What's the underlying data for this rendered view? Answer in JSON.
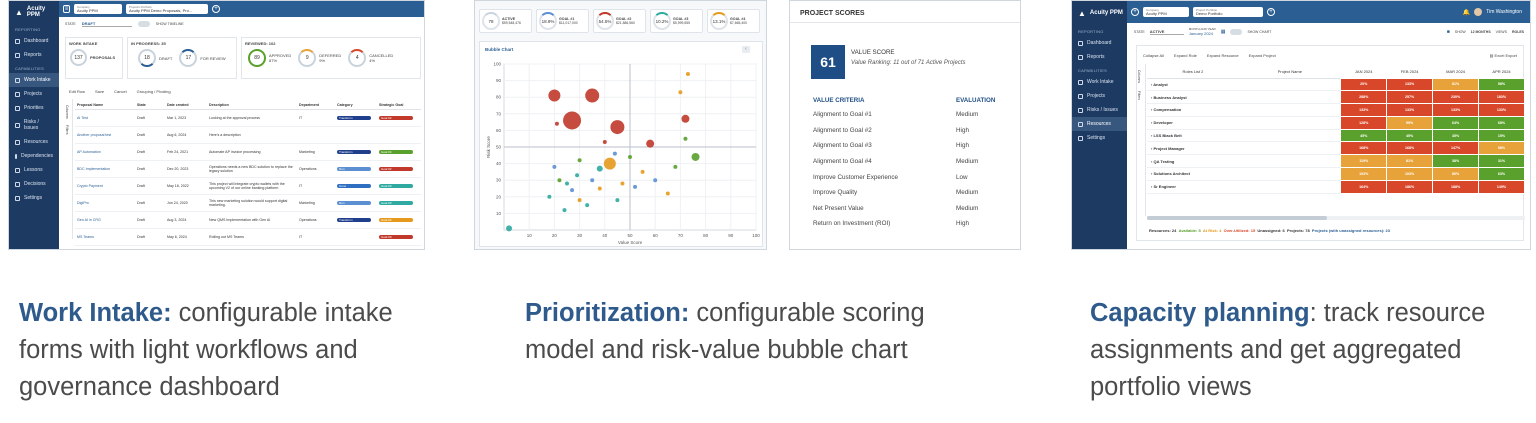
{
  "colors": {
    "sidebar": "#1d3a63",
    "topbar": "#2b5f94",
    "accent": "#2e5a8c",
    "text": "#4b4b4b"
  },
  "p1": {
    "app": "Acuity PPM",
    "company_label": "Company",
    "company": "Acuity PPM",
    "portfolio_label": "Projects Portfolio",
    "portfolio": "Acuity PPM Demo Proposals, Pro...",
    "nav_section1": "REPORTING",
    "nav_section2": "CAPABILITIES",
    "nav": [
      {
        "label": "Dashboard",
        "icon": "home-icon"
      },
      {
        "label": "Reports",
        "icon": "report-icon"
      },
      {
        "label": "Work Intake",
        "icon": "intake-icon",
        "active": true
      },
      {
        "label": "Projects",
        "icon": "folder-icon"
      },
      {
        "label": "Priorities",
        "icon": "priority-icon"
      },
      {
        "label": "Risks / Issues",
        "icon": "warning-icon"
      },
      {
        "label": "Resources",
        "icon": "people-icon"
      },
      {
        "label": "Dependencies",
        "icon": "link-icon"
      },
      {
        "label": "Lessons",
        "icon": "bulb-icon"
      },
      {
        "label": "Decisions",
        "icon": "gavel-icon"
      },
      {
        "label": "Settings",
        "icon": "gear-icon"
      }
    ],
    "state_label": "STATE",
    "state": "DRAFT",
    "timeline": "SHOW TIMELINE",
    "work_intake": {
      "title": "WORK INTAKE",
      "count": "137",
      "label": "PROPOSALS"
    },
    "in_progress": {
      "title": "IN PROGRESS: 35",
      "draft": "18",
      "draft_label": "DRAFT",
      "review": "17",
      "review_label": "FOR REVIEW"
    },
    "reviewed": {
      "title": "REVIEWED: 102",
      "approved": "89",
      "approved_label": "APPROVED",
      "approved_pct": "87%",
      "deferred": "9",
      "deferred_label": "DEFERRED",
      "deferred_pct": "9%",
      "cancelled": "4",
      "cancelled_label": "CANCELLED",
      "cancelled_pct": "4%"
    },
    "toolbar": [
      "Edit Row",
      "Save",
      "Cancel",
      "Grouping / Pivoting"
    ],
    "side_tabs": [
      "Columns",
      "Filters"
    ],
    "columns": [
      "Proposal Name",
      "State",
      "Date created",
      "Description",
      "Department",
      "Category",
      "Strategic Goal"
    ],
    "rows": [
      {
        "name": "AI Test",
        "state": "Draft",
        "date": "Mar 1, 2023",
        "desc": "Looking at the approval process",
        "dept": "IT",
        "cat": "Transform",
        "cat_color": "#1f3f8c",
        "goal": "Goal #2",
        "goal_color": "#c0392b"
      },
      {
        "name": "Another proposal test",
        "state": "Draft",
        "date": "Aug 6, 2024",
        "desc": "Here's a description",
        "dept": "",
        "cat": "",
        "cat_color": "",
        "goal": "",
        "goal_color": ""
      },
      {
        "name": "AP Automation",
        "state": "Draft",
        "date": "Feb 24, 2021",
        "desc": "Automate AP invoice processing",
        "dept": "Marketing",
        "cat": "Transform",
        "cat_color": "#1f3f8c",
        "goal": "Goal #4",
        "goal_color": "#5aa02c"
      },
      {
        "name": "BDC Implementation",
        "state": "Draft",
        "date": "Dec 20, 2023",
        "desc": "Operations needs a new BDC solution to replace the legacy solution",
        "dept": "Operations",
        "cat": "Run",
        "cat_color": "#5b8fd1",
        "goal": "Goal #2",
        "goal_color": "#c0392b"
      },
      {
        "name": "Crypto Payment",
        "state": "Draft",
        "date": "May 18, 2022",
        "desc": "This project will integrate crypto wallets with the upcoming V2 of our online banking platform",
        "dept": "IT",
        "cat": "Grow",
        "cat_color": "#2f6fc2",
        "goal": "Goal #3",
        "goal_color": "#2eaaa0"
      },
      {
        "name": "DigiPro",
        "state": "Draft",
        "date": "Jun 24, 2020",
        "desc": "This new marketing solution would support digital marketing.",
        "dept": "Marketing",
        "cat": "Run",
        "cat_color": "#5b8fd1",
        "goal": "Goal #3",
        "goal_color": "#2eaaa0"
      },
      {
        "name": "Gen AI in CRG",
        "state": "Draft",
        "date": "Aug 3, 2024",
        "desc": "New QMS Implementation with Gen AI",
        "dept": "Operations",
        "cat": "Transform",
        "cat_color": "#1f3f8c",
        "goal": "Goal #2",
        "goal_color": "#e69a1d"
      },
      {
        "name": "MS Teams",
        "state": "Draft",
        "date": "May 6, 2024",
        "desc": "Rolling out MS Teams",
        "dept": "IT",
        "cat": "",
        "cat_color": "",
        "goal": "Goal #C",
        "goal_color": "#c0392b"
      }
    ]
  },
  "p2": {
    "kpis": [
      {
        "value": "78",
        "label": "ACTIVE",
        "sub": "$59,548,476",
        "color": "#c9d3dd"
      },
      {
        "value": "18.9%",
        "label": "GOAL #1",
        "sub": "$11,017,000",
        "color": "#5b8fd1"
      },
      {
        "value": "54.5%",
        "label": "GOAL #2",
        "sub": "$21,886,560",
        "color": "#c0392b"
      },
      {
        "value": "10.2%",
        "label": "GOAL #3",
        "sub": "$5,999,655",
        "color": "#2eaaa0"
      },
      {
        "value": "13.1%",
        "label": "GOAL #4",
        "sub": "$7,665,400",
        "color": "#e69a1d"
      }
    ],
    "chart_title": "Bubble Chart"
  },
  "chart_data": {
    "type": "scatter",
    "title": "Bubble Chart",
    "xlabel": "Value Score",
    "ylabel": "Risk Score",
    "xlim": [
      0,
      100
    ],
    "ylim": [
      0,
      100
    ],
    "xticks": [
      10,
      20,
      30,
      40,
      50,
      60,
      70,
      80,
      90,
      100
    ],
    "yticks": [
      10,
      20,
      30,
      40,
      50,
      60,
      70,
      80,
      90,
      100
    ],
    "points": [
      {
        "x": 20,
        "y": 81,
        "r": 6,
        "color": "#c0392b"
      },
      {
        "x": 35,
        "y": 81,
        "r": 7,
        "color": "#c0392b"
      },
      {
        "x": 27,
        "y": 66,
        "r": 9,
        "color": "#c0392b"
      },
      {
        "x": 45,
        "y": 62,
        "r": 7,
        "color": "#c0392b"
      },
      {
        "x": 72,
        "y": 67,
        "r": 4,
        "color": "#c0392b"
      },
      {
        "x": 58,
        "y": 52,
        "r": 4,
        "color": "#c0392b"
      },
      {
        "x": 21,
        "y": 64,
        "r": 2,
        "color": "#c0392b"
      },
      {
        "x": 40,
        "y": 53,
        "r": 2,
        "color": "#c0392b"
      },
      {
        "x": 70,
        "y": 83,
        "r": 2,
        "color": "#e69a1d"
      },
      {
        "x": 73,
        "y": 94,
        "r": 2,
        "color": "#e69a1d"
      },
      {
        "x": 42,
        "y": 40,
        "r": 6,
        "color": "#e69a1d"
      },
      {
        "x": 38,
        "y": 25,
        "r": 2,
        "color": "#e69a1d"
      },
      {
        "x": 55,
        "y": 35,
        "r": 2,
        "color": "#e69a1d"
      },
      {
        "x": 47,
        "y": 28,
        "r": 2,
        "color": "#e69a1d"
      },
      {
        "x": 30,
        "y": 18,
        "r": 2,
        "color": "#e69a1d"
      },
      {
        "x": 65,
        "y": 22,
        "r": 2,
        "color": "#e69a1d"
      },
      {
        "x": 76,
        "y": 44,
        "r": 4,
        "color": "#5aa02c"
      },
      {
        "x": 72,
        "y": 55,
        "r": 2,
        "color": "#5aa02c"
      },
      {
        "x": 68,
        "y": 38,
        "r": 2,
        "color": "#5aa02c"
      },
      {
        "x": 30,
        "y": 42,
        "r": 2,
        "color": "#5aa02c"
      },
      {
        "x": 22,
        "y": 30,
        "r": 2,
        "color": "#5aa02c"
      },
      {
        "x": 50,
        "y": 44,
        "r": 2,
        "color": "#5aa02c"
      },
      {
        "x": 38,
        "y": 37,
        "r": 3,
        "color": "#2eaaa0"
      },
      {
        "x": 25,
        "y": 28,
        "r": 2,
        "color": "#2eaaa0"
      },
      {
        "x": 29,
        "y": 33,
        "r": 2,
        "color": "#2eaaa0"
      },
      {
        "x": 18,
        "y": 20,
        "r": 2,
        "color": "#2eaaa0"
      },
      {
        "x": 33,
        "y": 15,
        "r": 2,
        "color": "#2eaaa0"
      },
      {
        "x": 24,
        "y": 12,
        "r": 2,
        "color": "#2eaaa0"
      },
      {
        "x": 45,
        "y": 18,
        "r": 2,
        "color": "#2eaaa0"
      },
      {
        "x": 2,
        "y": 1,
        "r": 3,
        "color": "#2eaaa0"
      },
      {
        "x": 27,
        "y": 24,
        "r": 2,
        "color": "#5b8fd1"
      },
      {
        "x": 35,
        "y": 30,
        "r": 2,
        "color": "#5b8fd1"
      },
      {
        "x": 20,
        "y": 38,
        "r": 2,
        "color": "#5b8fd1"
      },
      {
        "x": 52,
        "y": 26,
        "r": 2,
        "color": "#5b8fd1"
      },
      {
        "x": 60,
        "y": 30,
        "r": 2,
        "color": "#5b8fd1"
      },
      {
        "x": 44,
        "y": 46,
        "r": 2,
        "color": "#5b8fd1"
      }
    ]
  },
  "p3": {
    "title": "PROJECT SCORES",
    "score": "61",
    "score_title": "VALUE SCORE",
    "score_sub": "Value Ranking: 11 out of 71 Active Projects",
    "col1": "VALUE CRITERIA",
    "col2": "EVALUATION",
    "rows": [
      {
        "c": "Alignment to Goal #1",
        "e": "Medium"
      },
      {
        "c": "Alignment to Goal #2",
        "e": "High"
      },
      {
        "c": "Alignment to Goal #3",
        "e": "High"
      },
      {
        "c": "Alignment to Goal #4",
        "e": "Medium"
      },
      {
        "c": "Improve Customer Experience",
        "e": "Low"
      },
      {
        "c": "Improve Quality",
        "e": "Medium"
      },
      {
        "c": "Net Present Value",
        "e": "Medium"
      },
      {
        "c": "Return on Investment (ROI)",
        "e": "High"
      }
    ]
  },
  "p4": {
    "app": "Acuity PPM",
    "company_label": "Company",
    "company": "Acuity PPM",
    "portfolio_label": "Project Portfolio",
    "portfolio": "Demo Portfolio",
    "user": "Tim Washington",
    "notif": "1",
    "nav_section1": "REPORTING",
    "nav_section2": "CAPABILITIES",
    "nav": [
      {
        "label": "Dashboard",
        "icon": "home-icon"
      },
      {
        "label": "Reports",
        "icon": "report-icon"
      },
      {
        "label": "Work Intake",
        "icon": "intake-icon"
      },
      {
        "label": "Projects",
        "icon": "folder-icon"
      },
      {
        "label": "Risks / Issues",
        "icon": "warning-icon"
      },
      {
        "label": "Resources",
        "icon": "people-icon",
        "active": true
      },
      {
        "label": "Settings",
        "icon": "gear-icon"
      }
    ],
    "state_label": "STATE",
    "state": "ACTIVE",
    "month_label": "MONTH AND YEAR",
    "month": "January 2024",
    "show_chart": "SHOW CHART",
    "show_label": "SHOW",
    "show": "12 MONTHS",
    "views_label": "VIEWS",
    "views": "ROLES",
    "toolbar": [
      "Collapse All",
      "Expand Role",
      "Expand Resource",
      "Expand Project"
    ],
    "export": "Excel Export",
    "side_tabs": [
      "Columns",
      "Filters"
    ],
    "columns": [
      "Roles List 2",
      "Project Name",
      "JAN 2024",
      "FEB 2024",
      "MAR 2024",
      "APR 2024"
    ],
    "rows": [
      {
        "role": "Analyst",
        "v": [
          [
            "20%",
            "#d9472b"
          ],
          [
            "133%",
            "#d9472b"
          ],
          [
            "81%",
            "#e8a23a"
          ],
          [
            "58%",
            "#5aa02c"
          ]
        ]
      },
      {
        "role": "Business Analyst",
        "v": [
          [
            "288%",
            "#d9472b"
          ],
          [
            "257%",
            "#d9472b"
          ],
          [
            "230%",
            "#d9472b"
          ],
          [
            "183%",
            "#d9472b"
          ]
        ]
      },
      {
        "role": "Compensation",
        "v": [
          [
            "133%",
            "#d9472b"
          ],
          [
            "133%",
            "#d9472b"
          ],
          [
            "133%",
            "#d9472b"
          ],
          [
            "133%",
            "#d9472b"
          ]
        ]
      },
      {
        "role": "Developer",
        "v": [
          [
            "128%",
            "#d9472b"
          ],
          [
            "99%",
            "#e8a23a"
          ],
          [
            "64%",
            "#5aa02c"
          ],
          [
            "68%",
            "#5aa02c"
          ]
        ]
      },
      {
        "role": "LSS Black Belt",
        "v": [
          [
            "45%",
            "#5aa02c"
          ],
          [
            "45%",
            "#5aa02c"
          ],
          [
            "45%",
            "#5aa02c"
          ],
          [
            "15%",
            "#5aa02c"
          ]
        ]
      },
      {
        "role": "Project Manager",
        "v": [
          [
            "168%",
            "#d9472b"
          ],
          [
            "168%",
            "#d9472b"
          ],
          [
            "147%",
            "#d9472b"
          ],
          [
            "98%",
            "#e8a23a"
          ]
        ]
      },
      {
        "role": "QA Testing",
        "v": [
          [
            "119%",
            "#e8a23a"
          ],
          [
            "81%",
            "#e8a23a"
          ],
          [
            "38%",
            "#5aa02c"
          ],
          [
            "31%",
            "#5aa02c"
          ]
        ]
      },
      {
        "role": "Solutions Architect",
        "v": [
          [
            "103%",
            "#e8a23a"
          ],
          [
            "103%",
            "#e8a23a"
          ],
          [
            "80%",
            "#e8a23a"
          ],
          [
            "63%",
            "#5aa02c"
          ]
        ]
      },
      {
        "role": "Sr Engineer",
        "v": [
          [
            "164%",
            "#d9472b"
          ],
          [
            "186%",
            "#d9472b"
          ],
          [
            "188%",
            "#d9472b"
          ],
          [
            "149%",
            "#d9472b"
          ]
        ]
      }
    ],
    "footer": {
      "resources": "Resources: 24",
      "available": "Available: 5",
      "at_risk": "At Risk: 4",
      "over": "Over-Utilized: 15",
      "unassigned": "Unassigned: 6",
      "projects": "Projects: 78",
      "projects_un": "Projects (with unassigned resources): 23"
    }
  },
  "captions": [
    {
      "title": "Work Intake:",
      "text": " configurable intake forms with light workflows and governance dashboard"
    },
    {
      "title": "Prioritization:",
      "text": " configurable scoring model and risk-value bubble chart"
    },
    {
      "title": "Capacity planning",
      "text": ": track resource assignments and get aggregated portfolio views"
    }
  ]
}
